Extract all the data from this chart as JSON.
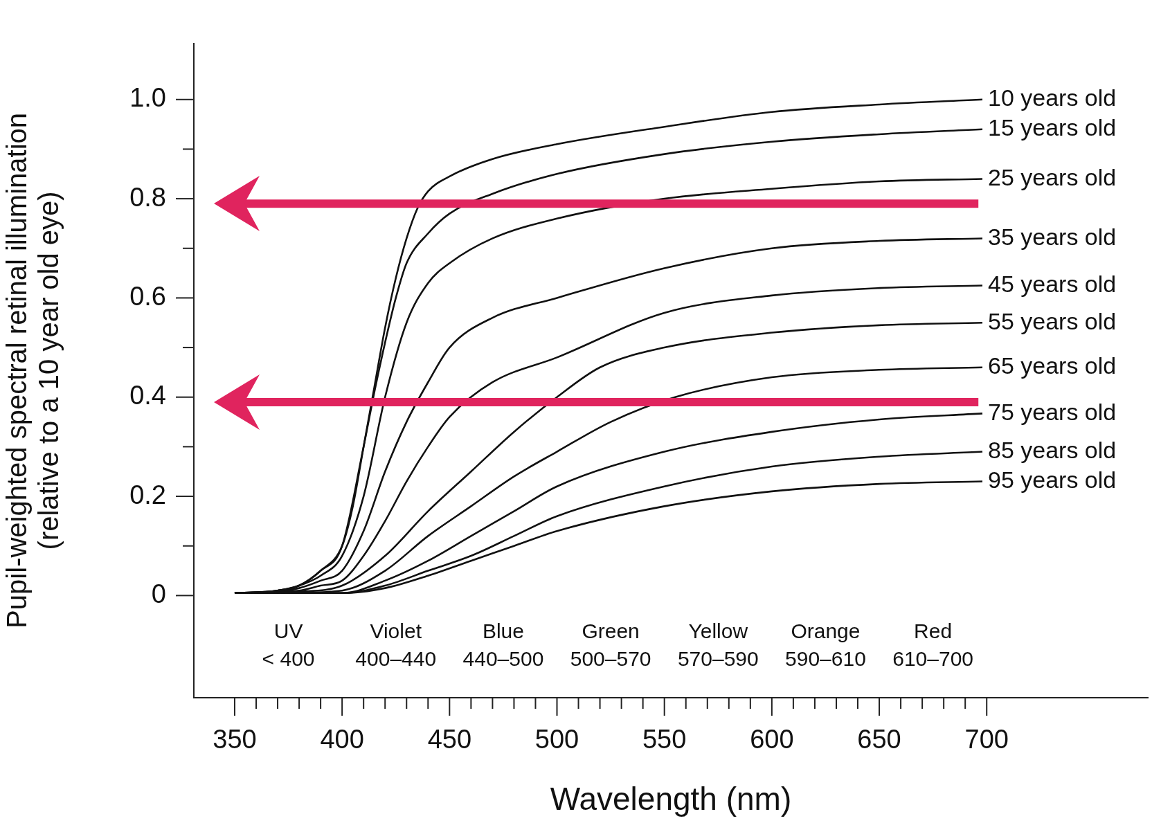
{
  "chart_data": {
    "type": "line",
    "xlabel": "Wavelength (nm)",
    "ylabel": "Pupil-weighted spectral retinal illumination\n(relative to a 10 year old eye)",
    "xlim": [
      331,
      775
    ],
    "ylim": [
      -0.206,
      1.113
    ],
    "xticks": [
      350,
      {
        "value": 360,
        "label": null
      },
      {
        "value": 370,
        "label": null
      },
      {
        "value": 380,
        "label": null
      },
      {
        "value": 390,
        "label": null
      },
      400,
      {
        "value": 410,
        "label": null
      },
      {
        "value": 420,
        "label": null
      },
      {
        "value": 430,
        "label": null
      },
      {
        "value": 440,
        "label": null
      },
      450,
      {
        "value": 460,
        "label": null
      },
      {
        "value": 470,
        "label": null
      },
      {
        "value": 480,
        "label": null
      },
      {
        "value": 490,
        "label": null
      },
      500,
      {
        "value": 510,
        "label": null
      },
      {
        "value": 520,
        "label": null
      },
      {
        "value": 530,
        "label": null
      },
      {
        "value": 540,
        "label": null
      },
      550,
      {
        "value": 560,
        "label": null
      },
      {
        "value": 570,
        "label": null
      },
      {
        "value": 580,
        "label": null
      },
      {
        "value": 590,
        "label": null
      },
      600,
      {
        "value": 610,
        "label": null
      },
      {
        "value": 620,
        "label": null
      },
      {
        "value": 630,
        "label": null
      },
      {
        "value": 640,
        "label": null
      },
      650,
      {
        "value": 660,
        "label": null
      },
      {
        "value": 670,
        "label": null
      },
      {
        "value": 680,
        "label": null
      },
      {
        "value": 690,
        "label": null
      },
      700
    ],
    "yticks": [
      0,
      {
        "value": 0.1,
        "label": null
      },
      0.2,
      {
        "value": 0.3,
        "label": null
      },
      0.4,
      {
        "value": 0.5,
        "label": null
      },
      0.6,
      {
        "value": 0.7,
        "label": null
      },
      0.8,
      {
        "value": 0.9,
        "label": null
      },
      {
        "value": 1,
        "label": "1.0"
      }
    ],
    "grid": false,
    "legend": false,
    "marker": "none",
    "line_style": "solid",
    "series": [
      {
        "name": "10 years old",
        "color": "#111111",
        "x": [
          350,
          370,
          380,
          390,
          400,
          405,
          410,
          415,
          420,
          425,
          430,
          435,
          440,
          450,
          470,
          500,
          550,
          600,
          650,
          698
        ],
        "values": [
          0.005,
          0.01,
          0.02,
          0.05,
          0.1,
          0.18,
          0.3,
          0.42,
          0.54,
          0.64,
          0.72,
          0.78,
          0.815,
          0.845,
          0.88,
          0.91,
          0.945,
          0.975,
          0.99,
          1.0
        ]
      },
      {
        "name": "15 years old",
        "color": "#111111",
        "x": [
          350,
          370,
          380,
          390,
          400,
          410,
          415,
          420,
          425,
          430,
          440,
          450,
          470,
          500,
          550,
          600,
          650,
          698
        ],
        "values": [
          0.005,
          0.01,
          0.02,
          0.05,
          0.1,
          0.3,
          0.41,
          0.51,
          0.6,
          0.67,
          0.73,
          0.77,
          0.81,
          0.85,
          0.89,
          0.915,
          0.93,
          0.94
        ]
      },
      {
        "name": "25 years old",
        "color": "#111111",
        "x": [
          350,
          370,
          380,
          390,
          400,
          410,
          420,
          430,
          440,
          450,
          470,
          500,
          550,
          600,
          650,
          698
        ],
        "values": [
          0.005,
          0.01,
          0.02,
          0.04,
          0.08,
          0.2,
          0.4,
          0.55,
          0.63,
          0.67,
          0.72,
          0.76,
          0.8,
          0.82,
          0.835,
          0.84
        ]
      },
      {
        "name": "35 years old",
        "color": "#111111",
        "x": [
          350,
          370,
          380,
          390,
          400,
          410,
          420,
          430,
          440,
          450,
          470,
          500,
          550,
          600,
          650,
          698
        ],
        "values": [
          0.005,
          0.008,
          0.015,
          0.03,
          0.05,
          0.13,
          0.25,
          0.35,
          0.43,
          0.5,
          0.56,
          0.6,
          0.66,
          0.7,
          0.715,
          0.72
        ]
      },
      {
        "name": "45 years old",
        "color": "#111111",
        "x": [
          350,
          380,
          390,
          400,
          410,
          420,
          430,
          440,
          450,
          470,
          500,
          550,
          600,
          650,
          698
        ],
        "values": [
          0.005,
          0.01,
          0.02,
          0.03,
          0.08,
          0.15,
          0.23,
          0.3,
          0.36,
          0.43,
          0.48,
          0.57,
          0.605,
          0.62,
          0.625
        ]
      },
      {
        "name": "55 years old",
        "color": "#111111",
        "x": [
          350,
          380,
          400,
          420,
          440,
          460,
          480,
          500,
          520,
          550,
          600,
          650,
          698
        ],
        "values": [
          0.005,
          0.008,
          0.02,
          0.08,
          0.17,
          0.25,
          0.33,
          0.4,
          0.46,
          0.5,
          0.53,
          0.545,
          0.55
        ]
      },
      {
        "name": "65 years old",
        "color": "#111111",
        "x": [
          350,
          380,
          400,
          420,
          440,
          460,
          480,
          500,
          525,
          555,
          600,
          650,
          698
        ],
        "values": [
          0.005,
          0.006,
          0.01,
          0.05,
          0.12,
          0.18,
          0.24,
          0.29,
          0.35,
          0.4,
          0.44,
          0.455,
          0.46
        ]
      },
      {
        "name": "75 years old",
        "color": "#111111",
        "x": [
          350,
          400,
          420,
          440,
          460,
          480,
          500,
          550,
          600,
          650,
          698
        ],
        "values": [
          0.005,
          0.005,
          0.03,
          0.07,
          0.12,
          0.17,
          0.22,
          0.29,
          0.33,
          0.355,
          0.367
        ]
      },
      {
        "name": "85 years old",
        "color": "#111111",
        "x": [
          350,
          400,
          420,
          440,
          460,
          480,
          500,
          550,
          600,
          650,
          698
        ],
        "values": [
          0.005,
          0.005,
          0.02,
          0.05,
          0.08,
          0.12,
          0.16,
          0.22,
          0.26,
          0.28,
          0.29
        ]
      },
      {
        "name": "95 years old",
        "color": "#111111",
        "x": [
          350,
          400,
          420,
          440,
          460,
          480,
          500,
          550,
          600,
          650,
          698
        ],
        "values": [
          0.005,
          0.005,
          0.015,
          0.04,
          0.07,
          0.1,
          0.13,
          0.18,
          0.21,
          0.225,
          0.23
        ]
      }
    ],
    "ref_lines": [
      {
        "axis": "y",
        "value": 0.79,
        "color": "#e0245e"
      },
      {
        "axis": "y",
        "value": 0.39,
        "color": "#e0245e"
      }
    ],
    "annotations": [
      "UV\n< 400",
      "Violet\n400–440",
      "Blue\n440–500",
      "Green\n500–570",
      "Yellow\n570–590",
      "Orange\n590–610",
      "Red\n610–700"
    ]
  }
}
